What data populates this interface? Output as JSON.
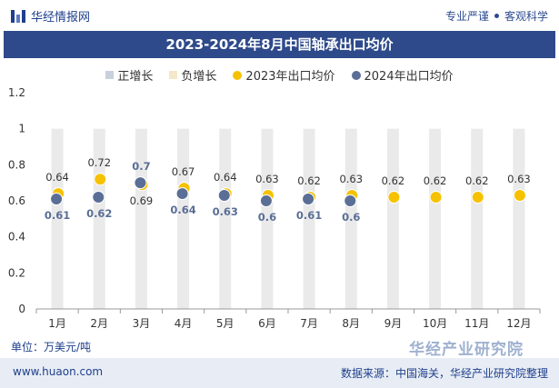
{
  "header": {
    "brand": "华经情报网",
    "slogan_left": "专业严谨",
    "slogan_right": "客观科学"
  },
  "title": "2023-2024年8月中国轴承出口均价",
  "legend": [
    {
      "label": "正增长",
      "color": "#c8d0dc",
      "shape": "square"
    },
    {
      "label": "负增长",
      "color": "#f5e8c8",
      "shape": "square"
    },
    {
      "label": "2023年出口均价",
      "color": "#f6c200",
      "shape": "dot"
    },
    {
      "label": "2024年出口均价",
      "color": "#5a6e96",
      "shape": "dot"
    }
  ],
  "unit": "单位：万美元/吨",
  "footer": {
    "url": "www.huaon.com",
    "source": "数据来源：中国海关，华经产业研究院整理"
  },
  "watermark": "华经产业研究院",
  "chart_data": {
    "type": "scatter",
    "categories": [
      "1月",
      "2月",
      "3月",
      "4月",
      "5月",
      "6月",
      "7月",
      "8月",
      "9月",
      "10月",
      "11月",
      "12月"
    ],
    "series": [
      {
        "name": "2023年出口均价",
        "values": [
          0.64,
          0.72,
          0.69,
          0.67,
          0.64,
          0.63,
          0.62,
          0.63,
          0.62,
          0.62,
          0.62,
          0.63
        ],
        "color": "#f6c200"
      },
      {
        "name": "2024年出口均价",
        "values": [
          0.61,
          0.62,
          0.7,
          0.64,
          0.63,
          0.6,
          0.61,
          0.6,
          null,
          null,
          null,
          null
        ],
        "color": "#5a6e96"
      }
    ],
    "bar_value": 1,
    "ylim": [
      0,
      1.2
    ],
    "yticks": [
      0,
      0.2,
      0.4,
      0.6,
      0.8,
      1,
      1.2
    ],
    "ytick_labels": [
      "0",
      "0.2",
      "0.4",
      "0.6",
      "0.8",
      "1",
      "1.2"
    ],
    "grid": false,
    "legend_position": "top"
  }
}
